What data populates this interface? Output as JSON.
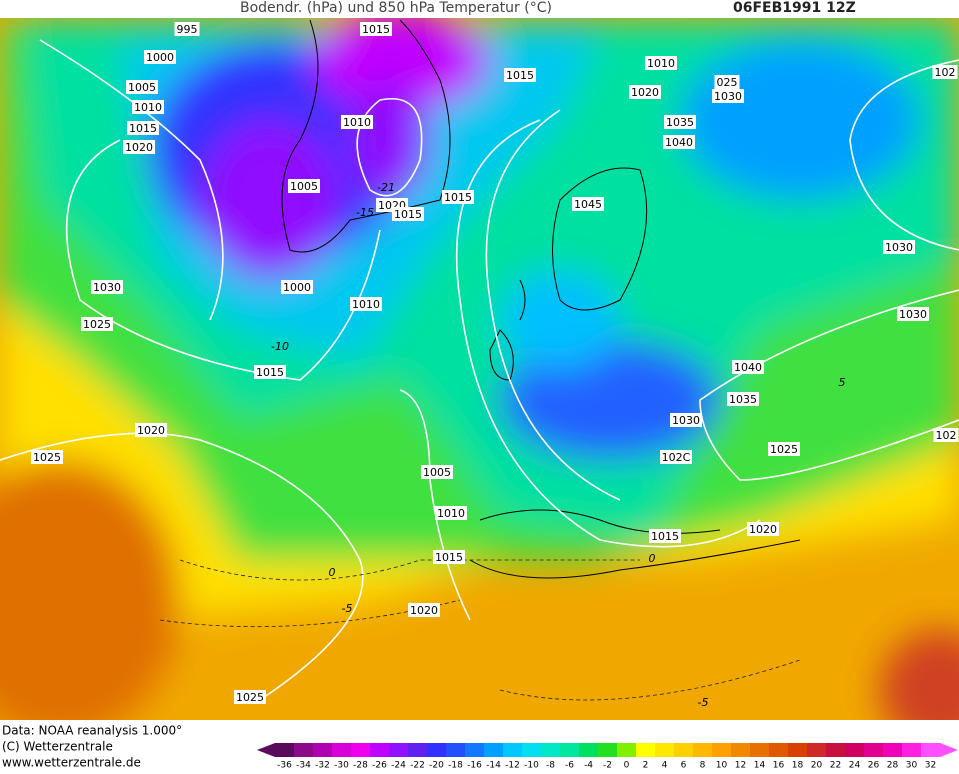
{
  "header": {
    "title": "Bodendr. (hPa) und 850 hPa Temperatur (°C)",
    "date": "06FEB1991 12Z"
  },
  "isobar_labels": [
    "995",
    "1015",
    "1000",
    "1005",
    "1010",
    "1015",
    "1020",
    "1010",
    "1005",
    "1020",
    "1015",
    "1015",
    "1000",
    "1010",
    "1030",
    "1025",
    "1015",
    "1020",
    "1025",
    "1005",
    "1010",
    "1015",
    "1020",
    "1025",
    "1015",
    "1010",
    "1020",
    "025",
    "1030",
    "1035",
    "1040",
    "1045",
    "1040",
    "1035",
    "1030",
    "102C",
    "1025",
    "1015",
    "1020",
    "1030",
    "1030",
    "102",
    "102"
  ],
  "temperature_labels": [
    "-21",
    "-15",
    "-10",
    "0",
    "-5",
    "5",
    "-5",
    "0"
  ],
  "footer": [
    "Data: NOAA reanalysis 1.000°",
    "(C) Wetterzentrale",
    "www.wetterzentrale.de"
  ],
  "colorbar": {
    "ticks": [
      -36,
      -34,
      -32,
      -30,
      -28,
      -26,
      -24,
      -22,
      -20,
      -18,
      -16,
      -14,
      -12,
      -10,
      -8,
      -6,
      -4,
      -2,
      0,
      2,
      4,
      6,
      8,
      10,
      12,
      14,
      16,
      18,
      20,
      22,
      24,
      26,
      28,
      30,
      32
    ],
    "colors": [
      "#5a0a5a",
      "#8a0a8a",
      "#b000b0",
      "#d800d8",
      "#ee00ee",
      "#c000ff",
      "#9010ff",
      "#6020f0",
      "#3030ff",
      "#2050ff",
      "#1478ff",
      "#00a0ff",
      "#00c8ff",
      "#00e0f0",
      "#00e8c8",
      "#00e8a0",
      "#00e060",
      "#20e020",
      "#80f000",
      "#ffff00",
      "#ffe800",
      "#ffd000",
      "#ffb800",
      "#ffa000",
      "#f08800",
      "#e87000",
      "#e05800",
      "#d84000",
      "#d02828",
      "#c81040",
      "#d00060",
      "#e00090",
      "#f000b8",
      "#ff20e0",
      "#ff50ff"
    ]
  }
}
